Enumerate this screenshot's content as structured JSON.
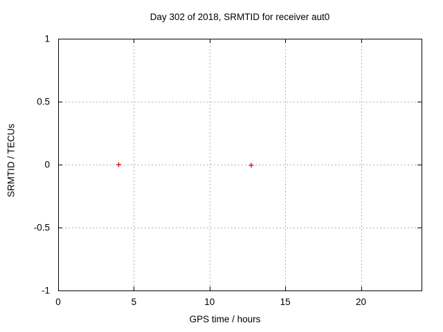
{
  "page": {
    "background": "#ffffff"
  },
  "chart_data": {
    "type": "scatter",
    "title": "Day 302 of 2018, SRMTID for receiver aut0",
    "xlabel": "GPS time / hours",
    "ylabel": "SRMTID / TECUs",
    "xlim": [
      0,
      24
    ],
    "ylim": [
      -1,
      1
    ],
    "x_ticks": [
      0,
      5,
      10,
      15,
      20
    ],
    "y_ticks": [
      -1,
      -0.5,
      0,
      0.5,
      1
    ],
    "grid": true,
    "legend": "none",
    "frame_color": "#000000",
    "grid_color": "#b0b0b0",
    "text_color": "#000000",
    "series": [
      {
        "name": "SRMTID",
        "marker": "plus",
        "color": "#e00000",
        "points": [
          [
            4.0,
            0.0
          ],
          [
            12.75,
            -0.005
          ]
        ]
      }
    ]
  }
}
